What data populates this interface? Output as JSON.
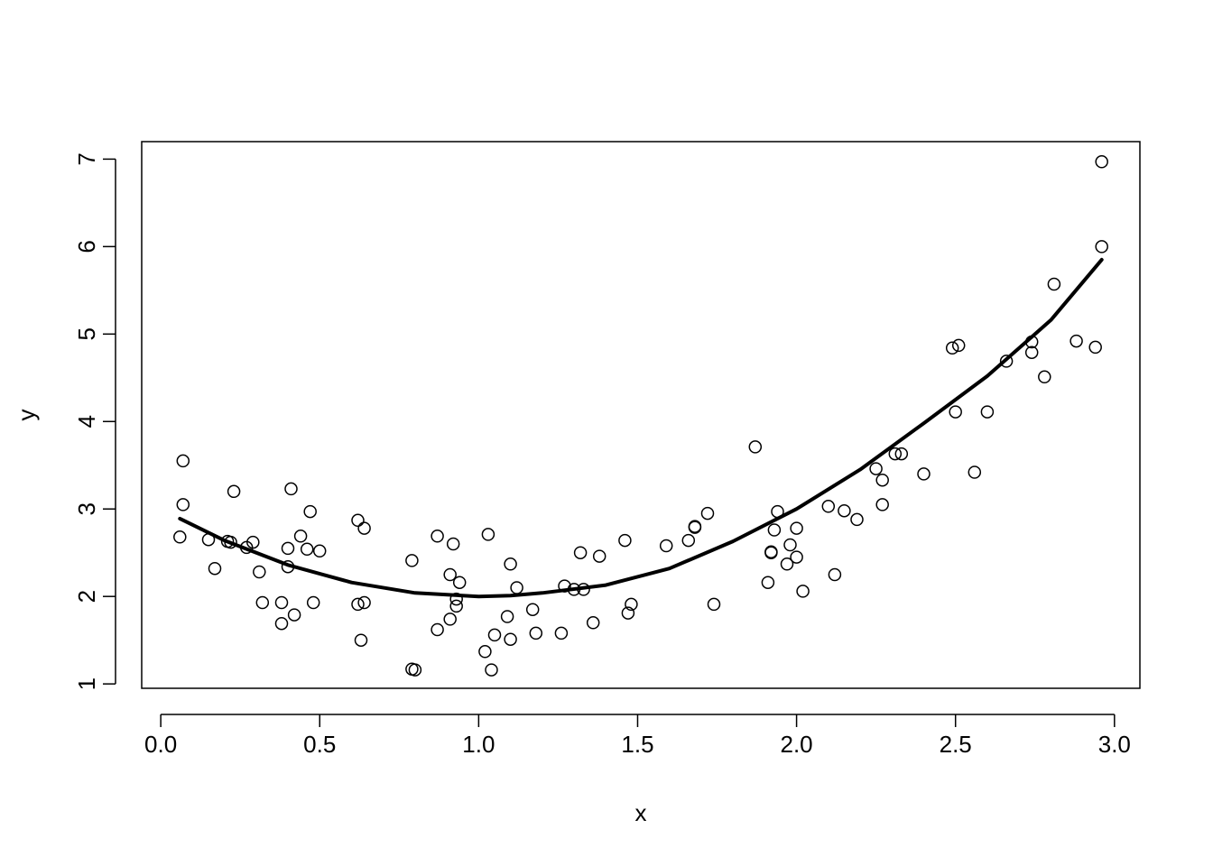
{
  "chart_data": {
    "type": "scatter",
    "title": "",
    "xlabel": "x",
    "ylabel": "y",
    "xlim": [
      -0.06,
      3.08
    ],
    "ylim": [
      0.95,
      7.2
    ],
    "x_ticks": [
      0.0,
      0.5,
      1.0,
      1.5,
      2.0,
      2.5,
      3.0
    ],
    "x_tick_labels": [
      "0.0",
      "0.5",
      "1.0",
      "1.5",
      "2.0",
      "2.5",
      "3.0"
    ],
    "y_ticks": [
      1,
      2,
      3,
      4,
      5,
      6,
      7
    ],
    "y_tick_labels": [
      "1",
      "2",
      "3",
      "4",
      "5",
      "6",
      "7"
    ],
    "grid": false,
    "legend": "none",
    "series": [
      {
        "kind": "points",
        "marker": "open-circle",
        "color": "#000000",
        "points": [
          [
            0.06,
            2.68
          ],
          [
            0.07,
            3.55
          ],
          [
            0.07,
            3.05
          ],
          [
            0.15,
            2.65
          ],
          [
            0.17,
            2.32
          ],
          [
            0.21,
            2.63
          ],
          [
            0.22,
            2.62
          ],
          [
            0.23,
            3.2
          ],
          [
            0.27,
            2.56
          ],
          [
            0.29,
            2.62
          ],
          [
            0.31,
            2.28
          ],
          [
            0.32,
            1.93
          ],
          [
            0.38,
            1.69
          ],
          [
            0.38,
            1.93
          ],
          [
            0.4,
            2.55
          ],
          [
            0.4,
            2.34
          ],
          [
            0.41,
            3.23
          ],
          [
            0.42,
            1.79
          ],
          [
            0.44,
            2.69
          ],
          [
            0.46,
            2.54
          ],
          [
            0.47,
            2.97
          ],
          [
            0.48,
            1.93
          ],
          [
            0.5,
            2.52
          ],
          [
            0.62,
            2.87
          ],
          [
            0.62,
            1.91
          ],
          [
            0.63,
            1.5
          ],
          [
            0.64,
            2.78
          ],
          [
            0.64,
            1.93
          ],
          [
            0.79,
            2.41
          ],
          [
            0.79,
            1.17
          ],
          [
            0.8,
            1.16
          ],
          [
            0.87,
            2.69
          ],
          [
            0.87,
            1.62
          ],
          [
            0.91,
            2.25
          ],
          [
            0.91,
            1.74
          ],
          [
            0.92,
            2.6
          ],
          [
            0.93,
            1.97
          ],
          [
            0.93,
            1.89
          ],
          [
            0.94,
            2.16
          ],
          [
            1.02,
            1.37
          ],
          [
            1.03,
            2.71
          ],
          [
            1.04,
            1.16
          ],
          [
            1.05,
            1.56
          ],
          [
            1.09,
            1.77
          ],
          [
            1.1,
            2.37
          ],
          [
            1.1,
            1.51
          ],
          [
            1.12,
            2.1
          ],
          [
            1.17,
            1.85
          ],
          [
            1.18,
            1.58
          ],
          [
            1.26,
            1.58
          ],
          [
            1.27,
            2.12
          ],
          [
            1.3,
            2.08
          ],
          [
            1.32,
            2.5
          ],
          [
            1.33,
            2.08
          ],
          [
            1.36,
            1.7
          ],
          [
            1.38,
            2.46
          ],
          [
            1.46,
            2.64
          ],
          [
            1.47,
            1.81
          ],
          [
            1.48,
            1.91
          ],
          [
            1.59,
            2.58
          ],
          [
            1.66,
            2.64
          ],
          [
            1.68,
            2.8
          ],
          [
            1.68,
            2.79
          ],
          [
            1.72,
            2.95
          ],
          [
            1.74,
            1.91
          ],
          [
            1.87,
            3.71
          ],
          [
            1.91,
            2.16
          ],
          [
            1.92,
            2.51
          ],
          [
            1.92,
            2.5
          ],
          [
            1.93,
            2.76
          ],
          [
            1.94,
            2.97
          ],
          [
            1.97,
            2.37
          ],
          [
            1.98,
            2.59
          ],
          [
            2.0,
            2.78
          ],
          [
            2.0,
            2.45
          ],
          [
            2.02,
            2.06
          ],
          [
            2.1,
            3.03
          ],
          [
            2.12,
            2.25
          ],
          [
            2.15,
            2.98
          ],
          [
            2.19,
            2.88
          ],
          [
            2.25,
            3.46
          ],
          [
            2.27,
            3.05
          ],
          [
            2.27,
            3.33
          ],
          [
            2.31,
            3.63
          ],
          [
            2.33,
            3.63
          ],
          [
            2.4,
            3.4
          ],
          [
            2.49,
            4.84
          ],
          [
            2.5,
            4.11
          ],
          [
            2.51,
            4.87
          ],
          [
            2.56,
            3.42
          ],
          [
            2.6,
            4.11
          ],
          [
            2.66,
            4.69
          ],
          [
            2.74,
            4.91
          ],
          [
            2.74,
            4.79
          ],
          [
            2.78,
            4.51
          ],
          [
            2.81,
            5.57
          ],
          [
            2.88,
            4.92
          ],
          [
            2.94,
            4.85
          ],
          [
            2.96,
            6.97
          ],
          [
            2.96,
            6.0
          ]
        ]
      },
      {
        "kind": "line",
        "color": "#000000",
        "points": [
          [
            0.06,
            2.89
          ],
          [
            0.2,
            2.64
          ],
          [
            0.4,
            2.36
          ],
          [
            0.6,
            2.16
          ],
          [
            0.8,
            2.04
          ],
          [
            1.0,
            2.0
          ],
          [
            1.1,
            2.01
          ],
          [
            1.2,
            2.04
          ],
          [
            1.4,
            2.13
          ],
          [
            1.6,
            2.32
          ],
          [
            1.8,
            2.63
          ],
          [
            2.0,
            3.0
          ],
          [
            2.2,
            3.45
          ],
          [
            2.4,
            3.98
          ],
          [
            2.6,
            4.52
          ],
          [
            2.8,
            5.16
          ],
          [
            2.96,
            5.85
          ]
        ]
      }
    ]
  }
}
